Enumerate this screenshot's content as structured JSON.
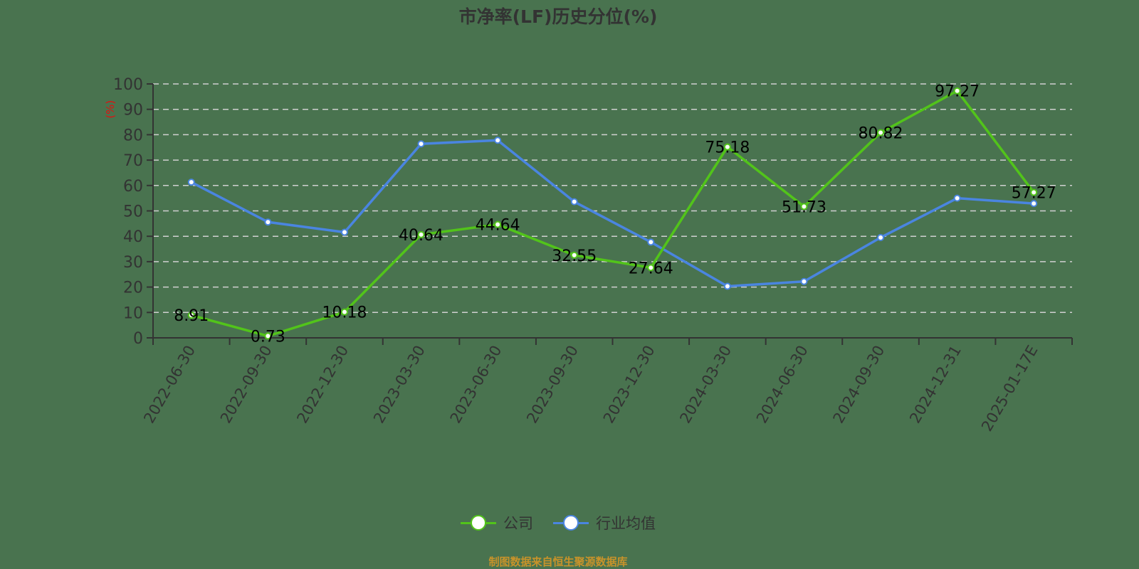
{
  "title": "市净率(LF)历史分位(%)",
  "footer": "制图数据来自恒生聚源数据库",
  "legend": [
    {
      "label": "公司",
      "color": "#52c41a"
    },
    {
      "label": "行业均值",
      "color": "#4a85e0"
    }
  ],
  "colors": {
    "background": "#49734f",
    "axis": "#333333",
    "grid": "#d0d0d0",
    "ylabel": "#e01010",
    "company": "#52c41a",
    "industry": "#4a85e0",
    "footer": "#c8932a"
  },
  "chart_data": {
    "type": "line",
    "title": "市净率(LF)历史分位(%)",
    "xlabel": "",
    "ylabel": "(%)",
    "ylim": [
      0,
      100
    ],
    "yticks": [
      0,
      10,
      20,
      30,
      40,
      50,
      60,
      70,
      80,
      90,
      100
    ],
    "grid": true,
    "legend_position": "bottom",
    "categories": [
      "2022-06-30",
      "2022-09-30",
      "2022-12-30",
      "2023-03-30",
      "2023-06-30",
      "2023-09-30",
      "2023-12-30",
      "2024-03-30",
      "2024-06-30",
      "2024-09-30",
      "2024-12-31",
      "2025-01-17E"
    ],
    "series": [
      {
        "name": "公司",
        "color": "#52c41a",
        "show_labels": true,
        "values": [
          8.91,
          0.73,
          10.18,
          40.64,
          44.64,
          32.55,
          27.64,
          75.18,
          51.73,
          80.82,
          97.27,
          57.27
        ]
      },
      {
        "name": "行业均值",
        "color": "#4a85e0",
        "show_labels": false,
        "values": [
          61.3,
          45.6,
          41.6,
          76.4,
          77.8,
          53.6,
          37.7,
          20.3,
          22.2,
          39.5,
          55.0,
          52.9
        ]
      }
    ]
  }
}
